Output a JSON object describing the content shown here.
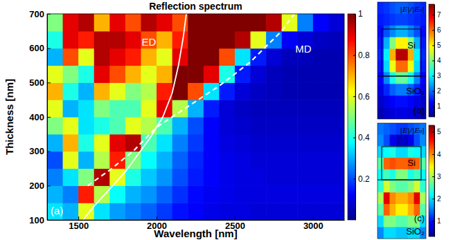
{
  "chart_data": [
    {
      "type": "heatmap",
      "title": "Reflection spectrum",
      "x_label": "Wavelength [nm]",
      "y_label": "Thickness [nm]",
      "annotations": [
        "(a)"
      ],
      "x": [
        1350,
        1450,
        1550,
        1650,
        1750,
        1850,
        1950,
        2050,
        2150,
        2250,
        2350,
        2450,
        2550,
        2650,
        2750,
        2850,
        2950,
        3050,
        3150
      ],
      "y": [
        125,
        175,
        225,
        275,
        325,
        375,
        425,
        475,
        525,
        575,
        625,
        675
      ],
      "z": [
        [
          0.35,
          0.3,
          0.6,
          0.35,
          0.28,
          0.25,
          0.22,
          0.18,
          0.14,
          0.12,
          0.1,
          0.09,
          0.09,
          0.08,
          0.08,
          0.08,
          0.08,
          0.08,
          0.08
        ],
        [
          0.3,
          0.25,
          0.85,
          0.55,
          0.38,
          0.3,
          0.27,
          0.22,
          0.17,
          0.13,
          0.11,
          0.1,
          0.09,
          0.09,
          0.09,
          0.09,
          0.09,
          0.09,
          0.09
        ],
        [
          0.25,
          0.35,
          0.5,
          0.95,
          0.6,
          0.4,
          0.32,
          0.27,
          0.2,
          0.15,
          0.12,
          0.1,
          0.09,
          0.09,
          0.08,
          0.08,
          0.08,
          0.08,
          0.08
        ],
        [
          0.2,
          0.6,
          0.3,
          0.55,
          0.85,
          0.5,
          0.38,
          0.3,
          0.22,
          0.16,
          0.12,
          0.1,
          0.09,
          0.08,
          0.08,
          0.08,
          0.08,
          0.08,
          0.08
        ],
        [
          0.3,
          0.7,
          0.4,
          0.6,
          0.9,
          0.95,
          0.45,
          0.35,
          0.25,
          0.18,
          0.12,
          0.09,
          0.08,
          0.07,
          0.07,
          0.07,
          0.07,
          0.07,
          0.07
        ],
        [
          0.5,
          0.6,
          0.35,
          0.4,
          0.45,
          0.6,
          0.55,
          0.45,
          0.3,
          0.2,
          0.12,
          0.08,
          0.07,
          0.06,
          0.06,
          0.06,
          0.06,
          0.06,
          0.06
        ],
        [
          0.6,
          0.3,
          0.35,
          0.5,
          0.45,
          0.45,
          0.6,
          0.9,
          0.55,
          0.3,
          0.15,
          0.08,
          0.06,
          0.05,
          0.05,
          0.05,
          0.05,
          0.05,
          0.05
        ],
        [
          0.7,
          0.4,
          0.3,
          0.7,
          0.6,
          0.5,
          0.55,
          0.85,
          1,
          0.8,
          0.35,
          0.15,
          0.08,
          0.06,
          0.05,
          0.04,
          0.04,
          0.04,
          0.04
        ],
        [
          0.6,
          0.5,
          0.4,
          0.9,
          0.8,
          0.7,
          0.6,
          0.7,
          1,
          1,
          0.9,
          0.4,
          0.15,
          0.08,
          0.05,
          0.04,
          0.04,
          0.04,
          0.04
        ],
        [
          0.3,
          0.8,
          0.6,
          0.95,
          0.9,
          0.85,
          0.7,
          0.6,
          0.9,
          1,
          1,
          0.8,
          0.35,
          0.15,
          0.08,
          0.05,
          0.05,
          0.04,
          0.04
        ],
        [
          0.4,
          0.9,
          0.85,
          0.95,
          0.95,
          0.9,
          0.8,
          0.7,
          0.85,
          1,
          1,
          1,
          0.95,
          0.6,
          0.25,
          0.12,
          0.08,
          0.06,
          0.05
        ],
        [
          0.5,
          0.9,
          0.95,
          0.7,
          0.9,
          0.8,
          0.95,
          0.9,
          0.8,
          1,
          1,
          1,
          1,
          1,
          0.95,
          0.6,
          0.25,
          0.12,
          0.08
        ]
      ],
      "xlim": [
        1300,
        3200
      ],
      "ylim": [
        100,
        700
      ],
      "xticks": [
        1500,
        2000,
        2500,
        3000
      ],
      "yticks": [
        100,
        200,
        300,
        400,
        500,
        600,
        700
      ],
      "colorbar": {
        "range": [
          0,
          1
        ],
        "ticks": [
          0.2,
          0.4,
          0.6,
          0.8,
          1
        ]
      },
      "series": [
        {
          "name": "ED",
          "type": "line",
          "color": "#ffffff",
          "line_style": "solid",
          "x": [
            1530,
            1600,
            1700,
            1800,
            1880,
            1960,
            2040,
            2100,
            2140,
            2170,
            2190
          ],
          "values": [
            100,
            140,
            190,
            240,
            290,
            340,
            400,
            470,
            550,
            630,
            700
          ]
        },
        {
          "name": "MD",
          "type": "line",
          "color": "#ffffff",
          "line_style": "dashed",
          "x": [
            1560,
            1700,
            1850,
            2000,
            2200,
            2400,
            2600,
            2800,
            2880
          ],
          "values": [
            200,
            245,
            300,
            370,
            430,
            490,
            560,
            650,
            700
          ]
        }
      ]
    },
    {
      "type": "heatmap",
      "tick_labels": false,
      "annotations": [
        "Si",
        "SiO₂",
        "(b)"
      ],
      "colorbar_label": "|E|/|E₀|",
      "z": [
        [
          1.5,
          1.6,
          1.8,
          1.9,
          1.9,
          1.8,
          1.6,
          1.5
        ],
        [
          1.4,
          1.5,
          1.6,
          1.7,
          1.7,
          1.6,
          1.5,
          1.4
        ],
        [
          1.3,
          1.8,
          2.2,
          2.5,
          2.5,
          2.2,
          1.8,
          1.3
        ],
        [
          1.4,
          2.5,
          4.0,
          5.0,
          5.0,
          4.0,
          2.5,
          1.4
        ],
        [
          1.5,
          3.0,
          5.5,
          7.3,
          7.3,
          5.5,
          3.0,
          1.5
        ],
        [
          1.4,
          2.8,
          4.8,
          6.0,
          6.0,
          4.8,
          2.8,
          1.4
        ],
        [
          1.2,
          2.2,
          3.2,
          3.8,
          3.8,
          3.2,
          2.2,
          1.2
        ],
        [
          1.0,
          1.5,
          1.9,
          2.1,
          2.1,
          1.9,
          1.5,
          1.0
        ],
        [
          0.8,
          1.0,
          1.2,
          1.3,
          1.3,
          1.2,
          1.0,
          0.8
        ],
        [
          0.6,
          0.8,
          0.9,
          1.0,
          1.0,
          0.9,
          0.8,
          0.6
        ]
      ],
      "colorbar": {
        "range": [
          0.3,
          7.7
        ],
        "ticks": [
          1,
          2,
          3,
          4,
          5,
          6,
          7
        ]
      }
    },
    {
      "type": "heatmap",
      "tick_labels": false,
      "annotations": [
        "Si",
        "SiO₂",
        "(c)"
      ],
      "colorbar_label": "|E|/|E₀|",
      "z": [
        [
          1.5,
          1.4,
          1.3,
          1.2,
          1.2,
          1.3,
          1.4,
          1.5
        ],
        [
          1.6,
          1.3,
          0.8,
          0.6,
          0.6,
          0.8,
          1.3,
          1.6
        ],
        [
          2.0,
          2.2,
          2.3,
          2.0,
          2.0,
          2.3,
          2.2,
          2.0
        ],
        [
          2.6,
          4.2,
          4.3,
          4.2,
          4.2,
          4.3,
          4.2,
          2.6
        ],
        [
          2.2,
          2.5,
          2.3,
          2.8,
          2.8,
          2.3,
          2.5,
          2.2
        ],
        [
          2.4,
          3.2,
          2.8,
          2.6,
          2.6,
          2.8,
          3.2,
          2.4
        ],
        [
          3.0,
          4.8,
          4.0,
          3.8,
          3.8,
          4.0,
          4.8,
          3.0
        ],
        [
          2.6,
          4.2,
          3.8,
          3.5,
          3.5,
          3.8,
          4.2,
          2.6
        ],
        [
          2.0,
          2.8,
          2.8,
          2.6,
          2.6,
          2.8,
          2.8,
          2.0
        ],
        [
          1.6,
          2.0,
          2.0,
          1.9,
          1.9,
          2.0,
          2.0,
          1.6
        ]
      ],
      "colorbar": {
        "range": [
          0.3,
          5.3
        ],
        "ticks": [
          1,
          2,
          3,
          4,
          5
        ]
      }
    }
  ]
}
